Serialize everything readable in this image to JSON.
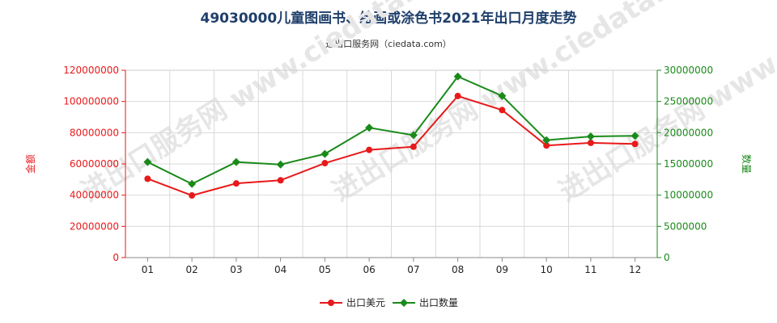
{
  "title": "49030000儿童图画书、绘画或涂色书2021年出口月度走势",
  "subtitle": "进出口服务网（ciedata.com）",
  "watermark": "进出口服务网 www.ciedata.com",
  "chart_data": {
    "type": "line",
    "categories": [
      "01",
      "02",
      "03",
      "04",
      "05",
      "06",
      "07",
      "08",
      "09",
      "10",
      "11",
      "12"
    ],
    "y_left": {
      "label": "金额",
      "ylim": [
        0,
        120000000
      ],
      "ticks": [
        "0",
        "20000000",
        "40000000",
        "60000000",
        "80000000",
        "100000000",
        "120000000"
      ]
    },
    "y_right": {
      "label": "数量",
      "ylim": [
        0,
        30000000
      ],
      "ticks": [
        "0",
        "5000000",
        "10000000",
        "15000000",
        "20000000",
        "25000000",
        "30000000"
      ]
    },
    "series": [
      {
        "name": "出口美元",
        "axis": "left",
        "color": "#e8191a",
        "marker": "circle",
        "values": [
          50500000,
          39800000,
          47500000,
          49500000,
          60500000,
          69000000,
          71000000,
          103500000,
          94500000,
          71800000,
          73500000,
          72800000
        ]
      },
      {
        "name": "出口数量",
        "axis": "right",
        "color": "#1a8a1a",
        "marker": "diamond",
        "values": [
          15300000,
          11800000,
          15300000,
          14900000,
          16600000,
          20800000,
          19600000,
          29000000,
          25900000,
          18800000,
          19400000,
          19500000
        ]
      }
    ],
    "grid": true,
    "legend": "bottom"
  }
}
